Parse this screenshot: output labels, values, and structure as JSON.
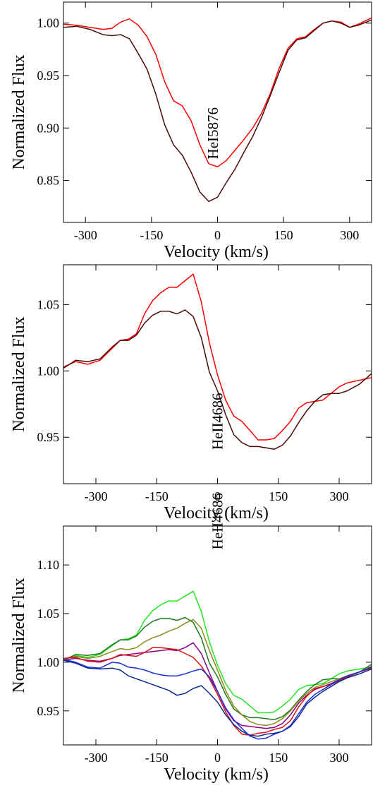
{
  "chart_data": [
    {
      "type": "line",
      "xlabel": "Velocity (km/s)",
      "ylabel": "Normalized Flux",
      "annotation": "HeI5876",
      "xlim": [
        -350,
        350
      ],
      "ylim": [
        0.81,
        1.02
      ],
      "xticks": [
        -300,
        -150,
        0,
        150,
        300
      ],
      "yticks": [
        0.85,
        0.9,
        0.95,
        1.0
      ],
      "ytick_labels": [
        "0.85",
        "0.90",
        "0.95",
        "1.00"
      ],
      "annotation_x": -10,
      "annotation_y": 0.895,
      "grid": false,
      "series": [
        {
          "color": "#ff0000",
          "x": [
            -350,
            -320,
            -290,
            -260,
            -240,
            -220,
            -200,
            -180,
            -160,
            -140,
            -120,
            -100,
            -80,
            -60,
            -40,
            -20,
            0,
            20,
            40,
            60,
            80,
            100,
            120,
            140,
            160,
            180,
            200,
            220,
            240,
            260,
            280,
            300,
            320,
            350
          ],
          "y": [
            0.999,
            0.998,
            0.996,
            0.994,
            0.995,
            1.001,
            1.004,
            0.998,
            0.987,
            0.97,
            0.944,
            0.926,
            0.921,
            0.907,
            0.884,
            0.866,
            0.863,
            0.869,
            0.879,
            0.889,
            0.9,
            0.914,
            0.933,
            0.957,
            0.976,
            0.985,
            0.987,
            0.994,
            1.0,
            1.002,
            1.001,
            0.996,
            0.999,
            1.005
          ]
        },
        {
          "color": "#4a0a0a",
          "x": [
            -350,
            -320,
            -290,
            -260,
            -240,
            -220,
            -200,
            -180,
            -160,
            -140,
            -120,
            -100,
            -80,
            -60,
            -40,
            -20,
            0,
            20,
            40,
            60,
            80,
            100,
            120,
            140,
            160,
            180,
            200,
            220,
            240,
            260,
            280,
            300,
            320,
            350
          ],
          "y": [
            0.996,
            0.997,
            0.994,
            0.989,
            0.988,
            0.989,
            0.985,
            0.971,
            0.956,
            0.932,
            0.903,
            0.884,
            0.874,
            0.858,
            0.839,
            0.83,
            0.834,
            0.848,
            0.861,
            0.877,
            0.892,
            0.91,
            0.931,
            0.953,
            0.974,
            0.984,
            0.986,
            0.993,
            1.0,
            1.002,
            1.0,
            0.996,
            0.998,
            1.003
          ]
        }
      ]
    },
    {
      "type": "line",
      "xlabel": "Velocity (km/s)",
      "ylabel": "Normalized Flux",
      "annotation": "HeII4686",
      "xlim": [
        -380,
        380
      ],
      "ylim": [
        0.915,
        1.08
      ],
      "xticks": [
        -300,
        -150,
        0,
        150,
        300
      ],
      "yticks": [
        0.95,
        1.0,
        1.05
      ],
      "ytick_labels": [
        "0.95",
        "1.00",
        "1.05"
      ],
      "annotation_x": 0,
      "annotation_y": 0.962,
      "grid": false,
      "series": [
        {
          "color": "#ff0000",
          "x": [
            -380,
            -350,
            -320,
            -290,
            -260,
            -240,
            -220,
            -200,
            -180,
            -160,
            -140,
            -120,
            -100,
            -80,
            -60,
            -40,
            -20,
            0,
            20,
            40,
            60,
            80,
            100,
            120,
            140,
            160,
            180,
            200,
            220,
            240,
            260,
            280,
            300,
            320,
            350,
            380
          ],
          "y": [
            1.003,
            1.007,
            1.005,
            1.008,
            1.017,
            1.023,
            1.024,
            1.028,
            1.043,
            1.053,
            1.059,
            1.063,
            1.063,
            1.068,
            1.073,
            1.052,
            1.021,
            0.997,
            0.978,
            0.966,
            0.962,
            0.955,
            0.948,
            0.948,
            0.949,
            0.955,
            0.962,
            0.972,
            0.976,
            0.977,
            0.978,
            0.983,
            0.988,
            0.991,
            0.993,
            0.995
          ]
        },
        {
          "color": "#4a0a0a",
          "x": [
            -380,
            -350,
            -320,
            -290,
            -260,
            -240,
            -220,
            -200,
            -180,
            -160,
            -140,
            -120,
            -100,
            -80,
            -60,
            -40,
            -20,
            0,
            20,
            40,
            60,
            80,
            100,
            120,
            140,
            160,
            180,
            200,
            220,
            240,
            260,
            280,
            300,
            320,
            350,
            380
          ],
          "y": [
            1.002,
            1.008,
            1.007,
            1.009,
            1.018,
            1.023,
            1.023,
            1.027,
            1.036,
            1.042,
            1.045,
            1.045,
            1.043,
            1.046,
            1.041,
            1.025,
            0.999,
            0.985,
            0.967,
            0.952,
            0.946,
            0.943,
            0.943,
            0.942,
            0.941,
            0.944,
            0.951,
            0.961,
            0.97,
            0.977,
            0.982,
            0.983,
            0.983,
            0.985,
            0.99,
            0.998
          ]
        }
      ]
    },
    {
      "type": "line",
      "xlabel": "Velocity (km/s)",
      "ylabel": "Normalized Flux",
      "annotation": "HeII4686",
      "xlim": [
        -380,
        380
      ],
      "ylim": [
        0.915,
        1.14
      ],
      "xticks": [
        -300,
        -150,
        0,
        150,
        300
      ],
      "yticks": [
        0.95,
        1.0,
        1.05,
        1.1
      ],
      "ytick_labels": [
        "0.95",
        "1.00",
        "1.05",
        "1.10"
      ],
      "annotation_x": 0,
      "annotation_y": 1.145,
      "grid": false,
      "series": [
        {
          "color": "#22e622",
          "x": [
            -380,
            -350,
            -320,
            -290,
            -260,
            -240,
            -220,
            -200,
            -180,
            -160,
            -140,
            -120,
            -100,
            -80,
            -60,
            -40,
            -20,
            0,
            20,
            40,
            60,
            80,
            100,
            120,
            140,
            160,
            180,
            200,
            220,
            240,
            260,
            280,
            300,
            320,
            350,
            380
          ],
          "y": [
            1.003,
            1.007,
            1.005,
            1.008,
            1.017,
            1.023,
            1.024,
            1.028,
            1.043,
            1.053,
            1.059,
            1.063,
            1.063,
            1.068,
            1.073,
            1.052,
            1.021,
            0.997,
            0.978,
            0.966,
            0.962,
            0.955,
            0.948,
            0.948,
            0.949,
            0.955,
            0.962,
            0.972,
            0.976,
            0.977,
            0.978,
            0.983,
            0.988,
            0.991,
            0.993,
            0.995
          ]
        },
        {
          "color": "#1e7a1e",
          "x": [
            -380,
            -350,
            -320,
            -290,
            -260,
            -240,
            -220,
            -200,
            -180,
            -160,
            -140,
            -120,
            -100,
            -80,
            -60,
            -40,
            -20,
            0,
            20,
            40,
            60,
            80,
            100,
            120,
            140,
            160,
            180,
            200,
            220,
            240,
            260,
            280,
            300,
            320,
            350,
            380
          ],
          "y": [
            1.002,
            1.008,
            1.007,
            1.009,
            1.018,
            1.023,
            1.023,
            1.027,
            1.036,
            1.042,
            1.045,
            1.045,
            1.043,
            1.046,
            1.041,
            1.025,
            0.999,
            0.985,
            0.967,
            0.952,
            0.946,
            0.943,
            0.943,
            0.942,
            0.941,
            0.944,
            0.951,
            0.961,
            0.97,
            0.977,
            0.982,
            0.983,
            0.983,
            0.985,
            0.99,
            0.998
          ]
        },
        {
          "color": "#8c8c1a",
          "x": [
            -380,
            -350,
            -320,
            -290,
            -260,
            -240,
            -220,
            -200,
            -180,
            -160,
            -140,
            -120,
            -100,
            -80,
            -60,
            -40,
            -20,
            0,
            20,
            40,
            60,
            80,
            100,
            120,
            140,
            160,
            180,
            200,
            220,
            240,
            260,
            280,
            300,
            320,
            350,
            380
          ],
          "y": [
            1.003,
            1.006,
            1.004,
            1.006,
            1.011,
            1.014,
            1.013,
            1.015,
            1.021,
            1.025,
            1.028,
            1.032,
            1.035,
            1.04,
            1.044,
            1.035,
            1.012,
            0.992,
            0.971,
            0.955,
            0.946,
            0.939,
            0.936,
            0.935,
            0.937,
            0.942,
            0.95,
            0.96,
            0.968,
            0.974,
            0.977,
            0.98,
            0.983,
            0.986,
            0.99,
            0.996
          ]
        },
        {
          "color": "#8a008a",
          "x": [
            -380,
            -350,
            -320,
            -290,
            -260,
            -240,
            -220,
            -200,
            -180,
            -160,
            -140,
            -120,
            -100,
            -80,
            -60,
            -40,
            -20,
            0,
            20,
            40,
            60,
            80,
            100,
            120,
            140,
            160,
            180,
            200,
            220,
            240,
            260,
            280,
            300,
            320,
            350,
            380
          ],
          "y": [
            1.002,
            1.004,
            1.002,
            1.001,
            1.004,
            1.007,
            1.008,
            1.009,
            1.01,
            1.011,
            1.012,
            1.013,
            1.012,
            1.015,
            1.02,
            1.009,
            0.989,
            0.97,
            0.952,
            0.94,
            0.935,
            0.934,
            0.933,
            0.932,
            0.933,
            0.937,
            0.946,
            0.958,
            0.966,
            0.972,
            0.975,
            0.978,
            0.982,
            0.986,
            0.99,
            0.995
          ]
        },
        {
          "color": "#e01010",
          "x": [
            -380,
            -350,
            -320,
            -290,
            -260,
            -240,
            -220,
            -200,
            -180,
            -160,
            -140,
            -120,
            -100,
            -80,
            -60,
            -40,
            -20,
            0,
            20,
            40,
            60,
            80,
            100,
            120,
            140,
            160,
            180,
            200,
            220,
            240,
            260,
            280,
            300,
            320,
            350,
            380
          ],
          "y": [
            1.004,
            1.005,
            1.001,
            1.0,
            1.004,
            1.008,
            1.007,
            1.006,
            1.01,
            1.015,
            1.015,
            1.014,
            1.013,
            1.009,
            1.005,
            0.996,
            0.983,
            0.967,
            0.949,
            0.935,
            0.926,
            0.925,
            0.927,
            0.928,
            0.931,
            0.933,
            0.94,
            0.954,
            0.965,
            0.973,
            0.975,
            0.977,
            0.981,
            0.985,
            0.99,
            0.994
          ]
        },
        {
          "color": "#0b2a8a",
          "x": [
            -380,
            -350,
            -320,
            -290,
            -260,
            -240,
            -220,
            -200,
            -180,
            -160,
            -140,
            -120,
            -100,
            -80,
            -60,
            -40,
            -20,
            0,
            20,
            40,
            60,
            80,
            100,
            120,
            140,
            160,
            180,
            200,
            220,
            240,
            260,
            280,
            300,
            320,
            350,
            380
          ],
          "y": [
            1.002,
            0.999,
            0.994,
            0.993,
            0.994,
            0.992,
            0.986,
            0.983,
            0.98,
            0.977,
            0.974,
            0.971,
            0.966,
            0.968,
            0.973,
            0.976,
            0.968,
            0.959,
            0.946,
            0.936,
            0.929,
            0.925,
            0.924,
            0.926,
            0.927,
            0.929,
            0.934,
            0.944,
            0.957,
            0.964,
            0.97,
            0.975,
            0.98,
            0.984,
            0.988,
            0.993
          ]
        },
        {
          "color": "#1a2cd6",
          "x": [
            -380,
            -350,
            -320,
            -290,
            -260,
            -240,
            -220,
            -200,
            -180,
            -160,
            -140,
            -120,
            -100,
            -80,
            -60,
            -40,
            -20,
            0,
            20,
            40,
            60,
            80,
            100,
            120,
            140,
            160,
            180,
            200,
            220,
            240,
            260,
            280,
            300,
            320,
            350,
            380
          ],
          "y": [
            1.003,
            1.0,
            0.995,
            0.994,
            1.0,
            0.999,
            0.995,
            0.994,
            0.992,
            0.989,
            0.987,
            0.986,
            0.986,
            0.988,
            0.991,
            0.993,
            0.985,
            0.97,
            0.953,
            0.941,
            0.932,
            0.924,
            0.921,
            0.922,
            0.926,
            0.929,
            0.935,
            0.947,
            0.959,
            0.967,
            0.972,
            0.977,
            0.982,
            0.986,
            0.99,
            0.995
          ]
        }
      ]
    }
  ]
}
